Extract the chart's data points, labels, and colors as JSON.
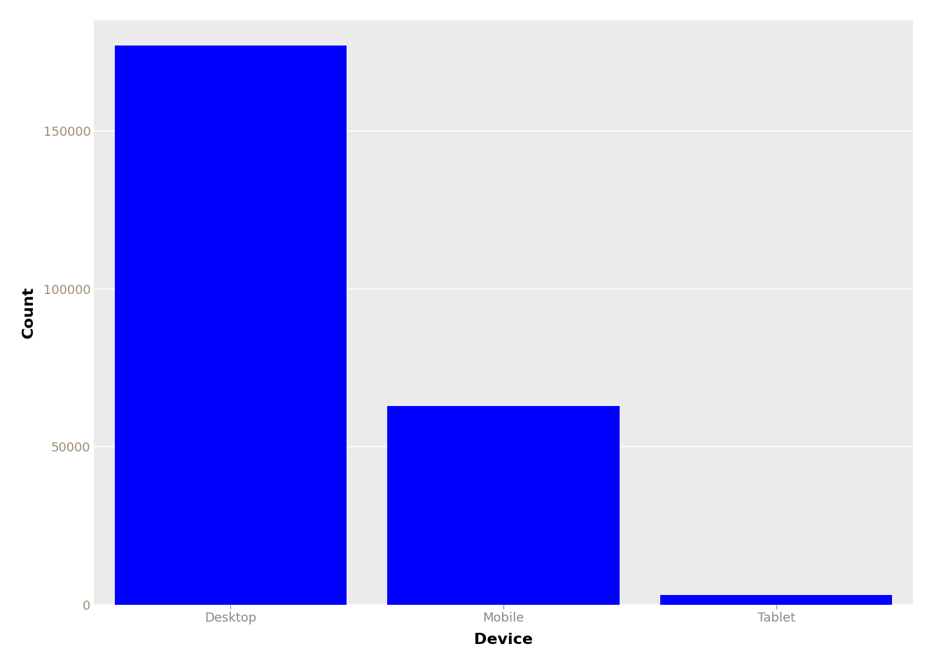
{
  "categories": [
    "Desktop",
    "Mobile",
    "Tablet"
  ],
  "values": [
    177000,
    63000,
    3000
  ],
  "bar_color": "#0000FF",
  "title": "",
  "xlabel": "Device",
  "ylabel": "Count",
  "ylim": [
    0,
    185000
  ],
  "yticks": [
    0,
    50000,
    100000,
    150000
  ],
  "panel_background": "#EBEBEB",
  "outer_background": "#FFFFFF",
  "grid_color": "#FFFFFF",
  "xlabel_fontsize": 16,
  "ylabel_fontsize": 16,
  "tick_fontsize": 13,
  "tick_label_color": "#9E8B72",
  "axis_label_color": "#000000",
  "bar_width": 0.85
}
